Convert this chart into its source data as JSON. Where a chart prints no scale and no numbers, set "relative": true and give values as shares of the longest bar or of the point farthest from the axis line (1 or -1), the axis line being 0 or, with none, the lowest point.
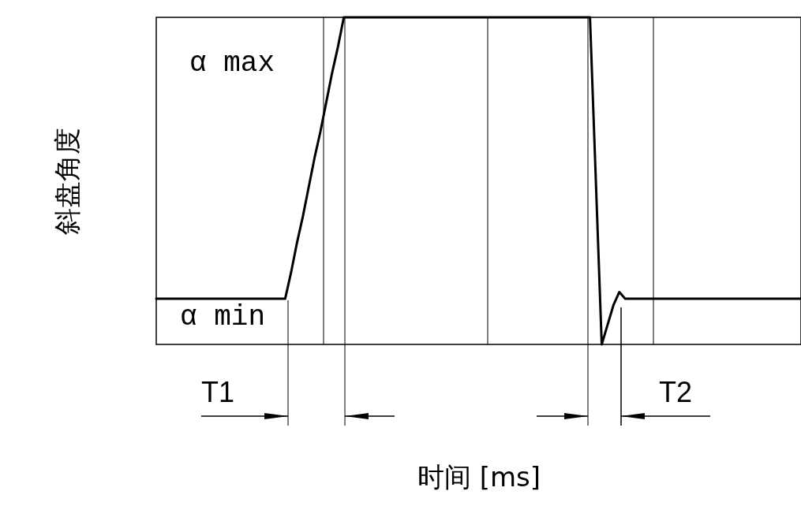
{
  "chart_data": {
    "type": "line",
    "relative": true,
    "xlabel": "时间 [ms]",
    "ylabel": "斜盘角度",
    "annotations": [
      "α max",
      "α min",
      "T1",
      "T2"
    ],
    "categories": [
      null,
      null,
      null,
      null,
      null,
      null,
      null,
      null,
      null,
      null,
      null,
      null,
      null,
      null,
      null,
      null,
      null,
      null,
      null,
      null,
      null,
      null,
      null,
      null,
      null,
      null,
      null,
      null,
      null,
      null,
      null,
      null,
      null,
      null,
      null,
      null,
      null,
      null,
      null,
      null,
      null,
      null,
      null,
      null,
      null,
      null,
      null,
      null,
      null,
      null,
      null,
      null,
      null,
      null,
      null,
      null,
      null,
      null,
      null,
      null,
      null,
      null,
      null,
      null,
      null,
      null,
      null,
      null,
      null,
      null,
      null,
      null,
      null,
      null,
      null,
      null,
      null,
      null,
      null,
      null,
      null,
      null,
      null,
      null,
      null,
      null,
      null,
      null,
      null,
      null,
      null,
      null,
      null,
      null,
      null,
      null,
      null,
      null,
      null,
      null,
      null,
      null,
      null,
      null,
      null,
      null,
      null,
      null,
      null,
      null,
      null
    ],
    "series": [
      {
        "color": "#000000",
        "values": [
          0.14,
          0.14,
          0.14,
          0.14,
          0.14,
          0.14,
          0.14,
          0.14,
          0.14,
          0.14,
          0.14,
          0.14,
          0.14,
          0.14,
          0.14,
          0.14,
          0.14,
          0.14,
          0.14,
          0.14,
          0.14,
          0.14,
          0.14,
          0.22,
          0.31,
          0.39,
          0.48,
          0.57,
          0.65,
          0.74,
          0.83,
          0.91,
          1,
          1,
          1,
          1,
          1,
          1,
          1,
          1,
          1,
          1,
          1,
          1,
          1,
          1,
          1,
          1,
          1,
          1,
          1,
          1,
          1,
          1,
          1,
          1,
          1,
          1,
          1,
          1,
          1,
          1,
          1,
          1,
          1,
          1,
          1,
          1,
          1,
          1,
          1,
          1,
          1,
          1,
          1,
          0.5,
          0,
          0.06,
          0.12,
          0.16,
          0.14,
          0.14,
          0.14,
          0.14,
          0.14,
          0.14,
          0.14,
          0.14,
          0.14,
          0.14,
          0.14,
          0.14,
          0.14,
          0.14,
          0.14,
          0.14,
          0.14,
          0.14,
          0.14,
          0.14,
          0.14,
          0.14,
          0.14,
          0.14,
          0.14,
          0.14,
          0.14,
          0.14,
          0.14,
          0.14,
          0.14
        ]
      }
    ]
  }
}
